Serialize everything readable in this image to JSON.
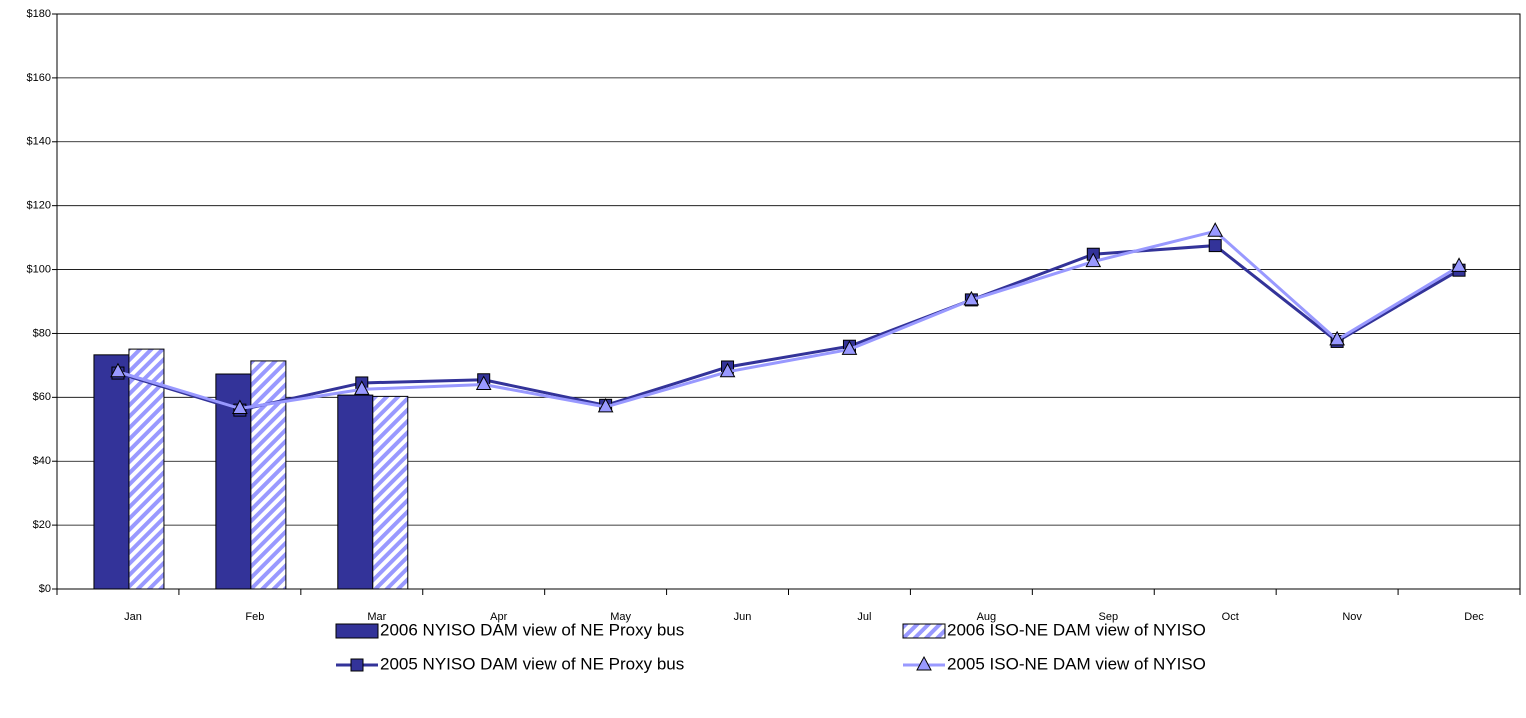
{
  "chart_data": {
    "type": "bar-line",
    "categories": [
      "Jan",
      "Feb",
      "Mar",
      "Apr",
      "May",
      "Jun",
      "Jul",
      "Aug",
      "Sep",
      "Oct",
      "Nov",
      "Dec"
    ],
    "series": [
      {
        "name": "2006 NYISO DAM view of NE Proxy bus",
        "kind": "bar",
        "color": "#333399",
        "values": [
          73.3,
          67.3,
          60.7,
          null,
          null,
          null,
          null,
          null,
          null,
          null,
          null,
          null
        ]
      },
      {
        "name": "2006 ISO-NE DAM view of NYISO",
        "kind": "bar",
        "hatch": true,
        "color": "#9999ff",
        "values": [
          75.1,
          71.4,
          60.3,
          null,
          null,
          null,
          null,
          null,
          null,
          null,
          null,
          null
        ]
      },
      {
        "name": "2005 NYISO DAM view of NE Proxy bus",
        "kind": "line",
        "marker": "square",
        "color": "#333399",
        "values": [
          67.6,
          56,
          64.5,
          65.5,
          57.5,
          69.5,
          76,
          90.5,
          104.8,
          107.5,
          77.5,
          99.8
        ]
      },
      {
        "name": "2005 ISO-NE DAM view of NYISO",
        "kind": "line",
        "marker": "triangle",
        "color": "#9999ff",
        "values": [
          68,
          56.5,
          62.5,
          64,
          57,
          68,
          75,
          90.5,
          102.5,
          112,
          78,
          101
        ]
      }
    ],
    "ylim": [
      0,
      180
    ],
    "yticks": [
      {
        "value": 0,
        "label": "$0"
      },
      {
        "value": 20,
        "label": "$20"
      },
      {
        "value": 40,
        "label": "$40"
      },
      {
        "value": 60,
        "label": "$60"
      },
      {
        "value": 80,
        "label": "$80"
      },
      {
        "value": 100,
        "label": "$100"
      },
      {
        "value": 120,
        "label": "$120"
      },
      {
        "value": 140,
        "label": "$140"
      },
      {
        "value": 160,
        "label": "$160"
      },
      {
        "value": 180,
        "label": "$180"
      }
    ],
    "grid": true
  }
}
